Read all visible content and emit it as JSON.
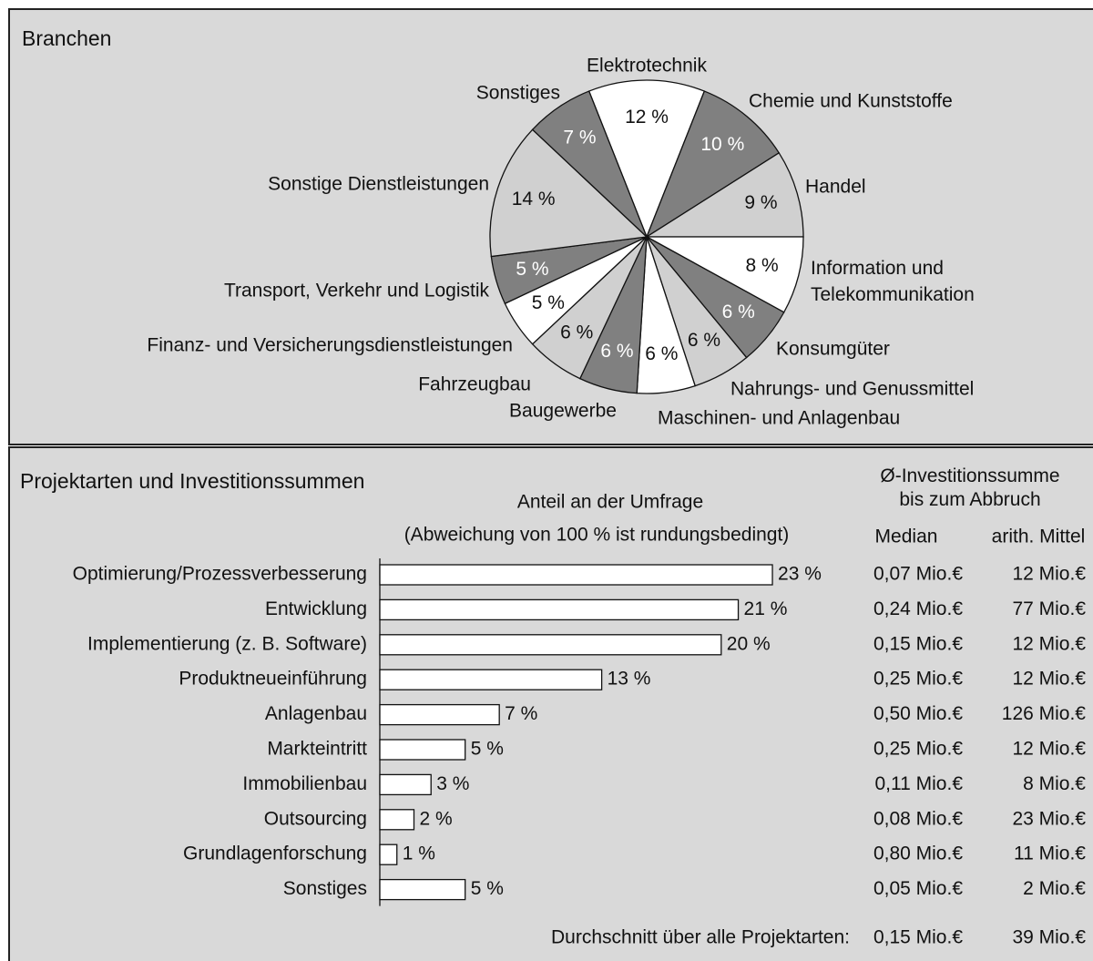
{
  "chart_data": [
    {
      "type": "pie",
      "title": "Branchen",
      "categories": [
        "Elektrotechnik",
        "Chemie und Kunststoffe",
        "Handel",
        "Information und\nTelekommunikation",
        "Konsumgüter",
        "Nahrungs- und Genussmittel",
        "Maschinen- und Anlagenbau",
        "Baugewerbe",
        "Fahrzeugbau",
        "Finanz- und Versicherungsdienstleistungen",
        "Transport, Verkehr und Logistik",
        "Sonstige Dienstleistungen",
        "Sonstiges"
      ],
      "values": [
        12,
        10,
        9,
        8,
        6,
        6,
        6,
        6,
        6,
        5,
        5,
        14,
        7
      ],
      "value_labels": [
        "12 %",
        "10 %",
        "9 %",
        "8 %",
        "6 %",
        "6 %",
        "6 %",
        "6 %",
        "6 %",
        "5 %",
        "5 %",
        "14 %",
        "7 %"
      ],
      "colors": [
        "#ffffff",
        "#808080",
        "#d0d0d0",
        "#ffffff",
        "#808080",
        "#d0d0d0",
        "#ffffff",
        "#808080",
        "#d0d0d0",
        "#ffffff",
        "#808080",
        "#d0d0d0",
        "#808080"
      ]
    },
    {
      "type": "bar",
      "orientation": "horizontal",
      "title": "Projektarten und Investitionssummen",
      "x_label": "Anteil an der Umfrage",
      "subtitle": "(Abweichung von 100 % ist rundungsbedingt)",
      "categories": [
        "Optimierung/Prozessverbesserung",
        "Entwicklung",
        "Implementierung (z. B. Software)",
        "Produktneueinführung",
        "Anlagenbau",
        "Markteintritt",
        "Immobilienbau",
        "Outsourcing",
        "Grundlagenforschung",
        "Sonstiges"
      ],
      "values": [
        23,
        21,
        20,
        13,
        7,
        5,
        3,
        2,
        1,
        5
      ],
      "value_labels": [
        "23 %",
        "21 %",
        "20 %",
        "13 %",
        "7 %",
        "5 %",
        "3 %",
        "2 %",
        "1 %",
        "5 %"
      ],
      "color": "#ffffff",
      "table": {
        "header": "Ø-Investitionssumme\nbis zum Abbruch",
        "columns": [
          "Median",
          "arith. Mittel"
        ],
        "rows": [
          [
            "0,07 Mio.€",
            "12 Mio.€"
          ],
          [
            "0,24 Mio.€",
            "77 Mio.€"
          ],
          [
            "0,15 Mio.€",
            "12 Mio.€"
          ],
          [
            "0,25 Mio.€",
            "12 Mio.€"
          ],
          [
            "0,50 Mio.€",
            "126 Mio.€"
          ],
          [
            "0,25 Mio.€",
            "12 Mio.€"
          ],
          [
            "0,11 Mio.€",
            "8 Mio.€"
          ],
          [
            "0,08 Mio.€",
            "23 Mio.€"
          ],
          [
            "0,80 Mio.€",
            "11 Mio.€"
          ],
          [
            "0,05 Mio.€",
            "2 Mio.€"
          ]
        ],
        "footer_label": "Durchschnitt über alle Projektarten:",
        "footer": [
          "0,15 Mio.€",
          "39 Mio.€"
        ]
      }
    }
  ]
}
